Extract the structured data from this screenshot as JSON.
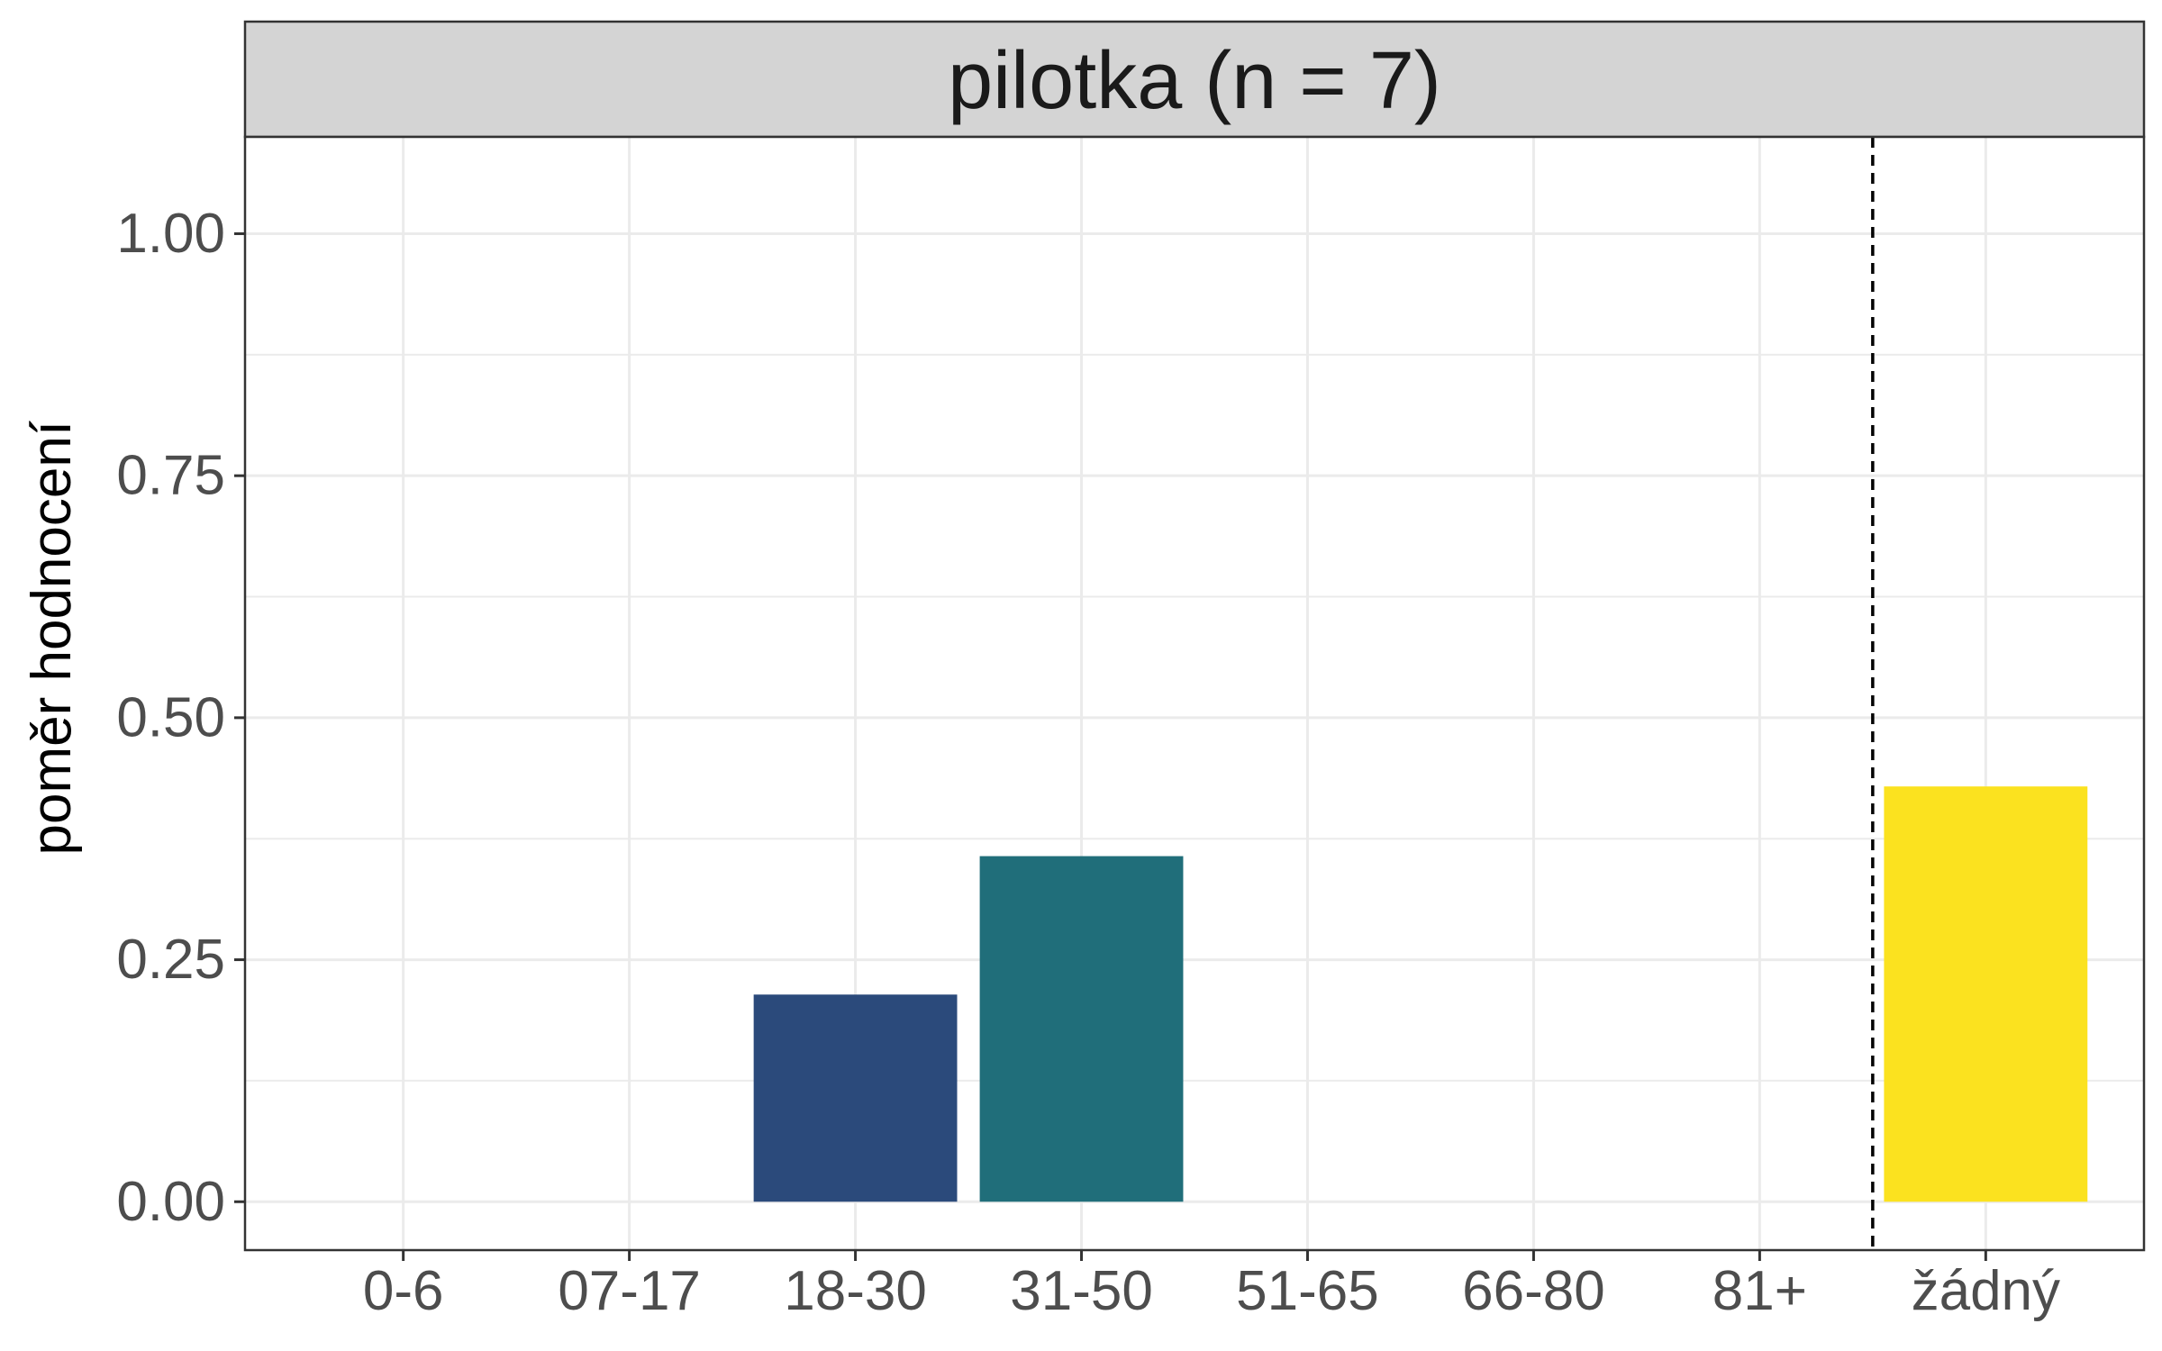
{
  "chart_data": {
    "type": "bar",
    "title": "pilotka (n = 7)",
    "xlabel": "",
    "ylabel": "poměr hodnocení",
    "categories": [
      "0-6",
      "07-17",
      "18-30",
      "31-50",
      "51-65",
      "66-80",
      "81+",
      "žádný"
    ],
    "values": [
      0,
      0,
      0.214,
      0.357,
      0,
      0,
      0,
      0.429
    ],
    "bar_colors": [
      "#2b4a7b",
      "#2b4a7b",
      "#2b4a7b",
      "#206e7a",
      "#206e7a",
      "#206e7a",
      "#206e7a",
      "#fbe21f"
    ],
    "ylim": [
      -0.05,
      1.1
    ],
    "yticks": [
      0.0,
      0.25,
      0.5,
      0.75,
      1.0
    ],
    "ytick_labels": [
      "0.00",
      "0.25",
      "0.50",
      "0.75",
      "1.00"
    ],
    "reference_line": {
      "between": [
        "81+",
        "žádný"
      ],
      "style": "dashed",
      "color": "#000000"
    },
    "grid": true,
    "legend": "none",
    "colors": {
      "panel_border": "#333333",
      "strip_fill": "#d4d4d4",
      "grid": "#ebebeb"
    }
  }
}
